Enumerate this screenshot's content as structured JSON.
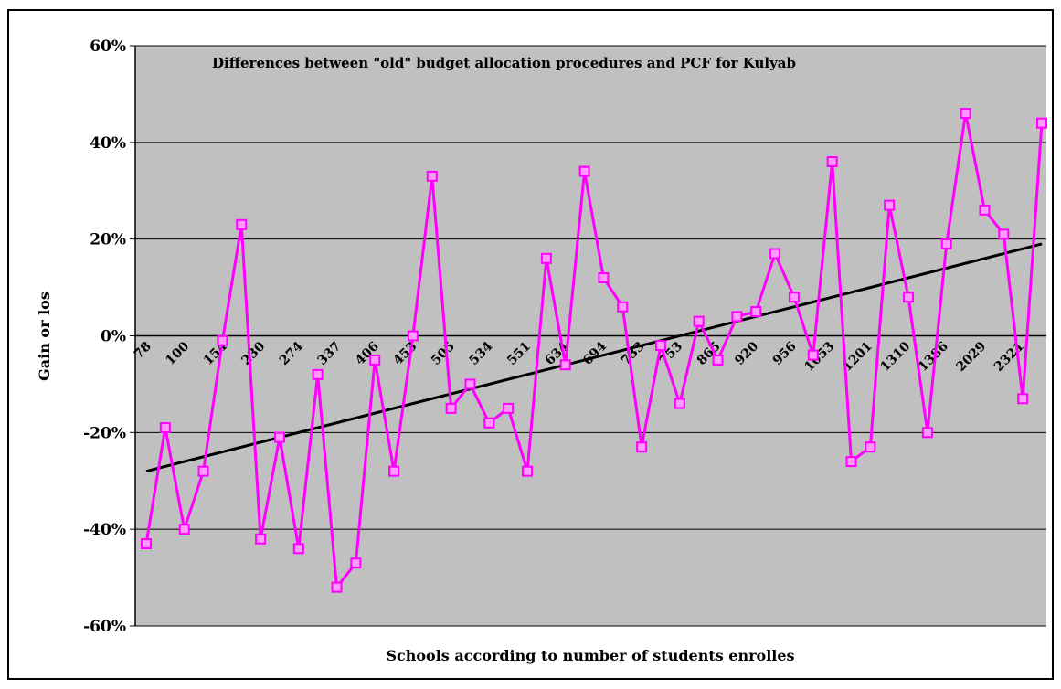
{
  "chart_data": {
    "type": "line",
    "title": "Differences between \"old\" budget allocation procedures and PCF for Kulyab",
    "xlabel": "Schools according to number of students enrolles",
    "ylabel": "Gain or los",
    "ylim": [
      -0.6,
      0.6
    ],
    "yticks": [
      "60%",
      "40%",
      "20%",
      "0%",
      "-20%",
      "-40%",
      "-60%"
    ],
    "ytick_values": [
      0.6,
      0.4,
      0.2,
      0.0,
      -0.2,
      -0.4,
      -0.6
    ],
    "grid": true,
    "legend": "none",
    "xtick_labels": [
      "78",
      "100",
      "154",
      "230",
      "274",
      "337",
      "406",
      "453",
      "505",
      "534",
      "551",
      "634",
      "694",
      "733",
      "753",
      "865",
      "920",
      "956",
      "1053",
      "1201",
      "1310",
      "1386",
      "2029",
      "2321"
    ],
    "series": [
      {
        "values": [
          -0.43,
          -0.19,
          -0.4,
          -0.28,
          -0.01,
          0.23,
          -0.42,
          -0.21,
          -0.44,
          -0.08,
          -0.52,
          -0.47,
          -0.05,
          -0.28,
          0.0,
          0.33,
          -0.15,
          -0.1,
          -0.18,
          -0.15,
          -0.28,
          0.16,
          -0.06,
          0.34,
          0.12,
          0.06,
          -0.23,
          -0.02,
          -0.14,
          0.03,
          -0.05,
          0.04,
          0.05,
          0.17,
          0.08,
          -0.04,
          0.36,
          -0.26,
          -0.23,
          0.27,
          0.08,
          -0.2,
          0.19,
          0.46,
          0.26,
          0.21,
          -0.13,
          0.44
        ]
      }
    ],
    "trendline": {
      "start": -0.28,
      "end": 0.19
    },
    "colors": {
      "series": "#ff00ff",
      "marker_fill": "#ff99ff",
      "plot_bg": "#c0c0c0",
      "trend": "#000000",
      "grid": "#000000"
    }
  }
}
